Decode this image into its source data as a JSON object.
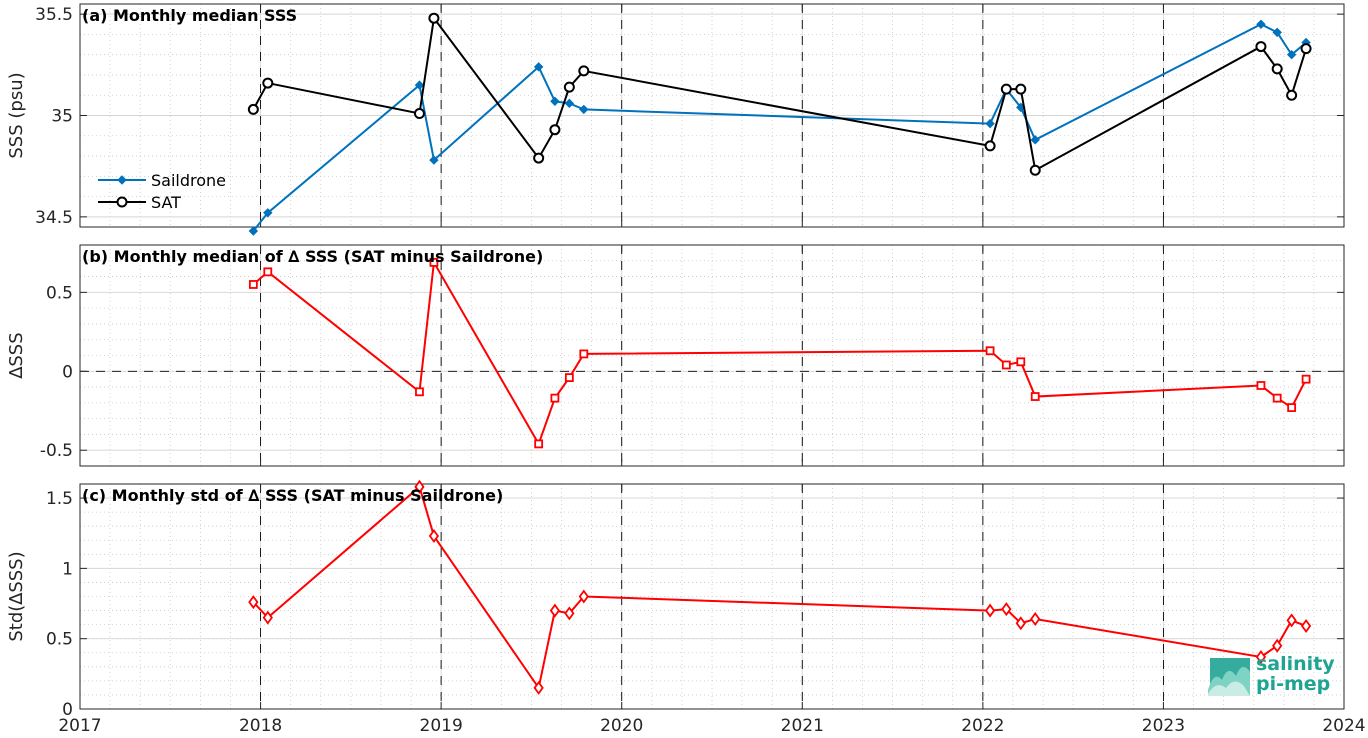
{
  "chart_data": [
    {
      "type": "line",
      "title": "(a) Monthly median SSS",
      "ylabel": "SSS (psu)",
      "xlim": [
        2017,
        2024
      ],
      "ylim": [
        34.45,
        35.55
      ],
      "yticks": [
        34.5,
        35,
        35.5
      ],
      "ytick_labels": [
        "34.5",
        "35",
        "35.5"
      ],
      "grid": true,
      "legend_position": "lower-left",
      "series": [
        {
          "name": "Saildrone",
          "color": "#0072bd",
          "marker": "diamond-filled",
          "x": [
            2017.96,
            2018.04,
            2018.88,
            2018.96,
            2019.54,
            2019.63,
            2019.71,
            2019.79,
            2022.04,
            2022.13,
            2022.21,
            2022.29,
            2023.54,
            2023.63,
            2023.71,
            2023.79
          ],
          "y": [
            34.43,
            34.52,
            35.15,
            34.78,
            35.24,
            35.07,
            35.06,
            35.03,
            34.96,
            35.13,
            35.04,
            34.88,
            35.45,
            35.41,
            35.3,
            35.36
          ]
        },
        {
          "name": "SAT",
          "color": "#000000",
          "marker": "circle-open",
          "x": [
            2017.96,
            2018.04,
            2018.88,
            2018.96,
            2019.54,
            2019.63,
            2019.71,
            2019.79,
            2022.04,
            2022.13,
            2022.21,
            2022.29,
            2023.54,
            2023.63,
            2023.71,
            2023.79
          ],
          "y": [
            35.03,
            35.16,
            35.01,
            35.48,
            34.79,
            34.93,
            35.14,
            35.22,
            34.85,
            35.13,
            35.13,
            34.73,
            35.34,
            35.23,
            35.1,
            35.33
          ]
        }
      ]
    },
    {
      "type": "line",
      "title": "(b) Monthly median of ∆ SSS (SAT minus Saildrone)",
      "ylabel": "∆SSS",
      "xlim": [
        2017,
        2024
      ],
      "ylim": [
        -0.6,
        0.8
      ],
      "yticks": [
        -0.5,
        0,
        0.5
      ],
      "ytick_labels": [
        "-0.5",
        "0",
        "0.5"
      ],
      "grid": true,
      "zero_line": true,
      "series": [
        {
          "color": "#ff0000",
          "marker": "square-open",
          "x": [
            2017.96,
            2018.04,
            2018.88,
            2018.96,
            2019.54,
            2019.63,
            2019.71,
            2019.79,
            2022.04,
            2022.13,
            2022.21,
            2022.29,
            2023.54,
            2023.63,
            2023.71,
            2023.79
          ],
          "y": [
            0.55,
            0.63,
            -0.13,
            0.69,
            -0.46,
            -0.17,
            -0.04,
            0.11,
            0.13,
            0.04,
            0.06,
            -0.16,
            -0.09,
            -0.17,
            -0.23,
            -0.05
          ]
        }
      ]
    },
    {
      "type": "line",
      "title": "(c) Monthly std of ∆ SSS (SAT minus Saildrone)",
      "ylabel": "Std(∆SSS)",
      "xlim": [
        2017,
        2024
      ],
      "ylim": [
        0,
        1.6
      ],
      "yticks": [
        0,
        0.5,
        1,
        1.5
      ],
      "ytick_labels": [
        "0",
        "0.5",
        "1",
        "1.5"
      ],
      "xticks": [
        2017,
        2018,
        2019,
        2020,
        2021,
        2022,
        2023,
        2024
      ],
      "xtick_labels": [
        "2017",
        "2018",
        "2019",
        "2020",
        "2021",
        "2022",
        "2023",
        "2024"
      ],
      "grid": true,
      "series": [
        {
          "color": "#ff0000",
          "marker": "diamond-open",
          "x": [
            2017.96,
            2018.04,
            2018.88,
            2018.96,
            2019.54,
            2019.63,
            2019.71,
            2019.79,
            2022.04,
            2022.13,
            2022.21,
            2022.29,
            2023.54,
            2023.63,
            2023.71,
            2023.79
          ],
          "y": [
            0.76,
            0.65,
            1.58,
            1.23,
            0.15,
            0.7,
            0.68,
            0.8,
            0.7,
            0.71,
            0.61,
            0.64,
            0.37,
            0.45,
            0.63,
            0.59
          ]
        }
      ]
    }
  ],
  "logo": {
    "line1": "salinity",
    "line2": "pi-mep",
    "color": "#1fa392"
  }
}
